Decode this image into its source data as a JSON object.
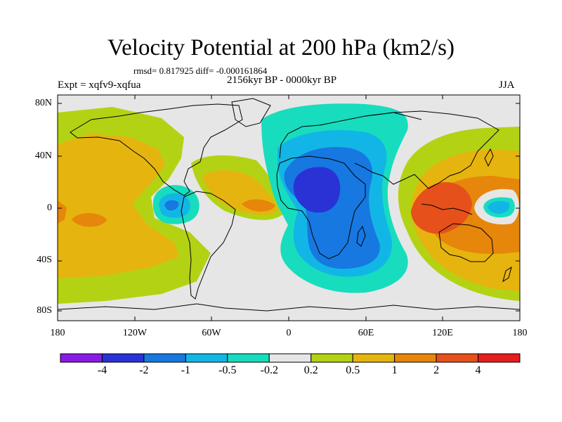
{
  "title": "Velocity Potential at 200 hPa (km2/s)",
  "stats": "rmsd= 0.817925 diff= -0.000161864",
  "experiment": "Expt = xqfv9-xqfua",
  "period": "2156kyr BP - 0000kyr BP",
  "season": "JJA",
  "lat_labels": [
    "80N",
    "40N",
    "0",
    "40S",
    "80S"
  ],
  "lon_labels": [
    "180",
    "120W",
    "60W",
    "0",
    "60E",
    "120E",
    "180"
  ],
  "colorbar": {
    "colors": [
      "#8a1ae6",
      "#2a32d6",
      "#1678e0",
      "#12b6e6",
      "#18dcbe",
      "#e6e6e6",
      "#b4d214",
      "#e6b40e",
      "#e6860a",
      "#e6501a",
      "#e61e1e"
    ],
    "labels": [
      "-4",
      "-2",
      "-1",
      "-0.5",
      "-0.2",
      "0.2",
      "0.5",
      "1",
      "2",
      "4"
    ]
  },
  "map_fill": {
    "background": "#e6e6e6",
    "levels": {
      "lvl_m4": "#8a1ae6",
      "lvl_m2": "#2a32d6",
      "lvl_m1": "#1678e0",
      "lvl_m05": "#12b6e6",
      "lvl_m02": "#18dcbe",
      "lvl_02": "#b4d214",
      "lvl_05": "#e6b40e",
      "lvl_1": "#e6860a",
      "lvl_2": "#e6501a"
    }
  }
}
